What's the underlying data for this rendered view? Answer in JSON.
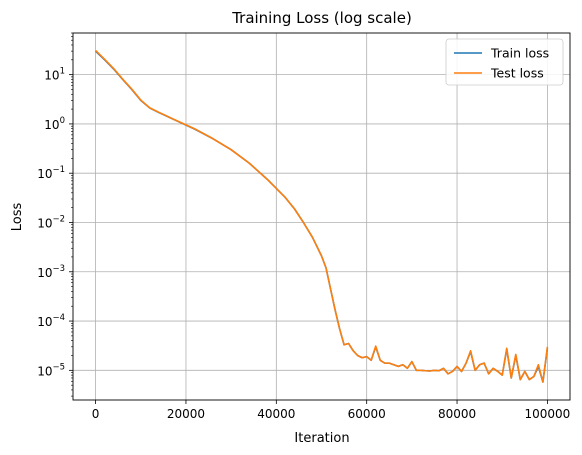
{
  "chart_data": {
    "type": "line",
    "title": "Training Loss (log scale)",
    "xlabel": "Iteration",
    "ylabel": "Loss",
    "xscale": "linear",
    "yscale": "log",
    "xlim": [
      -5000,
      105000
    ],
    "ylim": [
      2.5e-06,
      70
    ],
    "xticks": [
      0,
      20000,
      40000,
      60000,
      80000,
      100000
    ],
    "xtick_labels": [
      "0",
      "20000",
      "40000",
      "60000",
      "80000",
      "100000"
    ],
    "yticks": [
      1e-05,
      0.0001,
      0.001,
      0.01,
      0.1,
      1,
      10
    ],
    "ytick_labels": [
      {
        "base": "10",
        "exp": "−5"
      },
      {
        "base": "10",
        "exp": "−4"
      },
      {
        "base": "10",
        "exp": "−3"
      },
      {
        "base": "10",
        "exp": "−2"
      },
      {
        "base": "10",
        "exp": "−1"
      },
      {
        "base": "10",
        "exp": "0"
      },
      {
        "base": "10",
        "exp": "1"
      }
    ],
    "grid": true,
    "legend_position": "upper right",
    "series": [
      {
        "name": "Train loss",
        "color": "#1f77b4",
        "x": [
          0,
          2000,
          4000,
          6000,
          8000,
          10000,
          12000,
          14000,
          18000,
          22000,
          26000,
          30000,
          34000,
          38000,
          42000,
          44000,
          46000,
          48000,
          50000,
          51000,
          52000,
          53000,
          54000,
          55000,
          56000,
          57000,
          58000,
          59000,
          60000,
          61000,
          62000,
          63000,
          64000,
          65000,
          66000,
          67000,
          68000,
          69000,
          70000,
          71000,
          72000,
          73000,
          74000,
          75000,
          76000,
          77000,
          78000,
          79000,
          80000,
          81000,
          82000,
          83000,
          84000,
          85000,
          86000,
          87000,
          88000,
          89000,
          90000,
          91000,
          92000,
          93000,
          94000,
          95000,
          96000,
          97000,
          98000,
          99000,
          100000
        ],
        "y": [
          30,
          20,
          13,
          8,
          5,
          3,
          2.1,
          1.7,
          1.15,
          0.78,
          0.5,
          0.3,
          0.16,
          0.075,
          0.032,
          0.019,
          0.01,
          0.005,
          0.0021,
          0.0012,
          0.00045,
          0.00017,
          7e-05,
          3.3e-05,
          3.5e-05,
          2.5e-05,
          2e-05,
          1.8e-05,
          1.9e-05,
          1.6e-05,
          3e-05,
          1.6e-05,
          1.4e-05,
          1.4e-05,
          1.3e-05,
          1.2e-05,
          1.3e-05,
          1.1e-05,
          1.5e-05,
          1e-05,
          1e-05,
          9.8e-06,
          9.7e-06,
          1e-05,
          9.8e-06,
          1.1e-05,
          8.5e-06,
          9.5e-06,
          1.2e-05,
          9.5e-06,
          1.4e-05,
          2.4e-05,
          1e-05,
          1.3e-05,
          1.4e-05,
          8.5e-06,
          1.1e-05,
          9.5e-06,
          8e-06,
          2.7e-05,
          7e-06,
          2e-05,
          6.5e-06,
          9.5e-06,
          6.5e-06,
          7.5e-06,
          1.2e-05,
          5.8e-06,
          2.8e-05
        ]
      },
      {
        "name": "Test loss",
        "color": "#ff7f0e",
        "x": [
          0,
          2000,
          4000,
          6000,
          8000,
          10000,
          12000,
          14000,
          18000,
          22000,
          26000,
          30000,
          34000,
          38000,
          42000,
          44000,
          46000,
          48000,
          50000,
          51000,
          52000,
          53000,
          54000,
          55000,
          56000,
          57000,
          58000,
          59000,
          60000,
          61000,
          62000,
          63000,
          64000,
          65000,
          66000,
          67000,
          68000,
          69000,
          70000,
          71000,
          72000,
          73000,
          74000,
          75000,
          76000,
          77000,
          78000,
          79000,
          80000,
          81000,
          82000,
          83000,
          84000,
          85000,
          86000,
          87000,
          88000,
          89000,
          90000,
          91000,
          92000,
          93000,
          94000,
          95000,
          96000,
          97000,
          98000,
          99000,
          100000
        ],
        "y": [
          31,
          20.5,
          13.3,
          8.1,
          5.1,
          3.05,
          2.12,
          1.72,
          1.16,
          0.79,
          0.5,
          0.3,
          0.16,
          0.075,
          0.032,
          0.019,
          0.01,
          0.005,
          0.0021,
          0.0012,
          0.00045,
          0.00017,
          7e-05,
          3.3e-05,
          3.5e-05,
          2.5e-05,
          2e-05,
          1.8e-05,
          1.9e-05,
          1.6e-05,
          3.1e-05,
          1.6e-05,
          1.4e-05,
          1.4e-05,
          1.3e-05,
          1.2e-05,
          1.3e-05,
          1.1e-05,
          1.5e-05,
          1e-05,
          1e-05,
          9.8e-06,
          9.7e-06,
          1e-05,
          9.8e-06,
          1.1e-05,
          8.5e-06,
          9.5e-06,
          1.2e-05,
          9.5e-06,
          1.4e-05,
          2.5e-05,
          1e-05,
          1.3e-05,
          1.4e-05,
          8.5e-06,
          1.1e-05,
          9.5e-06,
          8e-06,
          2.8e-05,
          7e-06,
          2.1e-05,
          6.5e-06,
          9.5e-06,
          6.5e-06,
          7.5e-06,
          1.3e-05,
          5.8e-06,
          3e-05
        ]
      }
    ]
  }
}
